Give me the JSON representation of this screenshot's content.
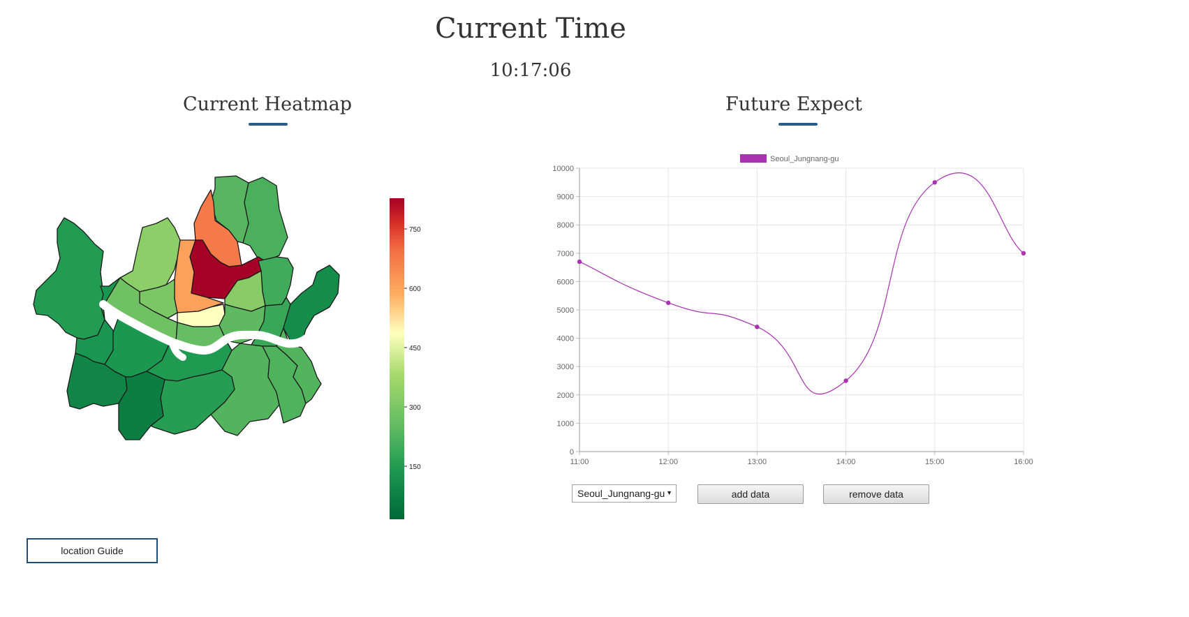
{
  "header": {
    "title": "Current Time",
    "clock": "10:17:06"
  },
  "heatmap": {
    "heading": "Current Heatmap",
    "colorbar_ticks": [
      "750",
      "600",
      "450",
      "300",
      "150"
    ],
    "regions": [
      {
        "id": "dobong",
        "value": 180
      },
      {
        "id": "nowon",
        "value": 165
      },
      {
        "id": "gangbuk",
        "value": 620
      },
      {
        "id": "eunpyeong",
        "value": 260
      },
      {
        "id": "seongbuk",
        "value": 800
      },
      {
        "id": "jongno",
        "value": 560
      },
      {
        "id": "jungnang",
        "value": 150
      },
      {
        "id": "dongdaemun",
        "value": 255
      },
      {
        "id": "seodaemun",
        "value": 235
      },
      {
        "id": "mapo",
        "value": 215
      },
      {
        "id": "jung",
        "value": 420
      },
      {
        "id": "seongdong",
        "value": 190
      },
      {
        "id": "gwangjin",
        "value": 140
      },
      {
        "id": "yongsan",
        "value": 200
      },
      {
        "id": "gangseo",
        "value": 110
      },
      {
        "id": "yangcheon",
        "value": 95
      },
      {
        "id": "guro",
        "value": 60
      },
      {
        "id": "yeongdeungpo",
        "value": 100
      },
      {
        "id": "dongjak",
        "value": 105
      },
      {
        "id": "geumcheon",
        "value": 45
      },
      {
        "id": "gwanak",
        "value": 115
      },
      {
        "id": "seocho",
        "value": 175
      },
      {
        "id": "gangnam",
        "value": 170
      },
      {
        "id": "songpa",
        "value": 175
      },
      {
        "id": "gangdong",
        "value": 75
      }
    ]
  },
  "forecast": {
    "heading": "Future Expect",
    "select_value": "Seoul_Jungnang-gu",
    "add_label": "add data",
    "remove_label": "remove data"
  },
  "guide": {
    "label": "location Guide"
  },
  "colors": {
    "series": "#a832b0",
    "accent": "#2b5b8a"
  },
  "chart_data": {
    "type": "line",
    "x": [
      "11:00",
      "12:00",
      "13:00",
      "14:00",
      "15:00",
      "16:00"
    ],
    "series": [
      {
        "name": "Seoul_Jungnang-gu",
        "values": [
          6700,
          5250,
          4400,
          2500,
          9500,
          7000
        ]
      }
    ],
    "ylim": [
      0,
      10000
    ],
    "yticks": [
      0,
      1000,
      2000,
      3000,
      4000,
      5000,
      6000,
      7000,
      8000,
      9000,
      10000
    ],
    "grid": true,
    "legend": "top",
    "smooth": true
  }
}
